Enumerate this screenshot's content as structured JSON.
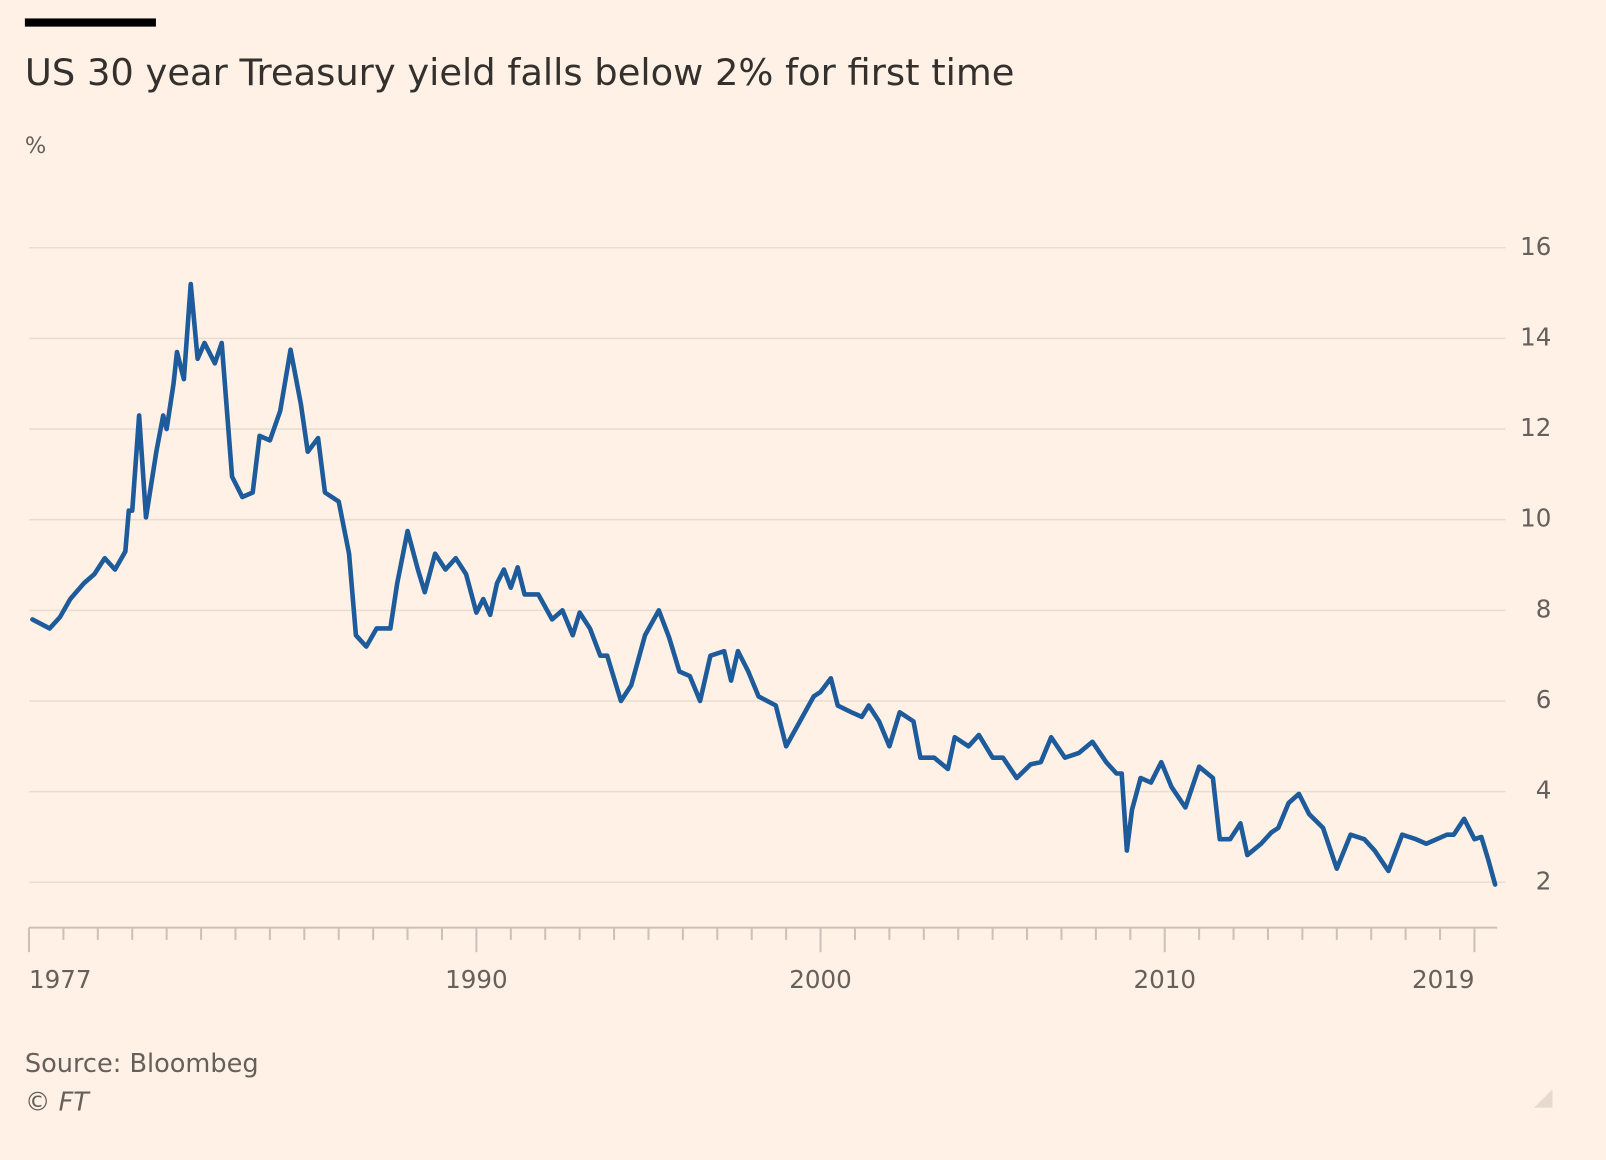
{
  "chart_data": {
    "type": "line",
    "title": "US 30 year Treasury yield falls below 2% for first time",
    "y_label": "%",
    "source": "Source: Bloombeg",
    "copyright": "© FT",
    "color": "#1d5b9b",
    "grid": true,
    "y_axis_side": "right",
    "xlim": [
      1977,
      2019.6
    ],
    "xticks": [
      1977,
      1990,
      2000,
      2010,
      2019
    ],
    "xminorticks": [
      1978,
      1979,
      1980,
      1981,
      1982,
      1983,
      1984,
      1985,
      1986,
      1987,
      1988,
      1989,
      1991,
      1992,
      1993,
      1994,
      1995,
      1996,
      1997,
      1998,
      1999,
      2001,
      2002,
      2003,
      2004,
      2005,
      2006,
      2007,
      2008,
      2009,
      2011,
      2012,
      2013,
      2014,
      2015,
      2016,
      2017,
      2018
    ],
    "ylim": [
      1,
      16
    ],
    "yticks": [
      2,
      4,
      6,
      8,
      10,
      12,
      14,
      16
    ],
    "x": [
      1977.1,
      1977.6,
      1977.9,
      1978.2,
      1978.6,
      1978.9,
      1979.2,
      1979.5,
      1979.8,
      1979.9,
      1980.0,
      1980.2,
      1980.4,
      1980.7,
      1980.9,
      1981.0,
      1981.2,
      1981.3,
      1981.5,
      1981.7,
      1981.9,
      1982.1,
      1982.4,
      1982.6,
      1982.9,
      1983.2,
      1983.5,
      1983.7,
      1984.0,
      1984.3,
      1984.6,
      1984.9,
      1985.1,
      1985.4,
      1985.6,
      1986.0,
      1986.3,
      1986.5,
      1986.8,
      1987.1,
      1987.5,
      1987.7,
      1988.0,
      1988.3,
      1988.5,
      1988.8,
      1989.1,
      1989.4,
      1989.7,
      1990.0,
      1990.2,
      1990.4,
      1990.6,
      1990.8,
      1991.0,
      1991.2,
      1991.4,
      1991.8,
      1992.2,
      1992.5,
      1992.8,
      1993.0,
      1993.3,
      1993.6,
      1993.8,
      1994.2,
      1994.5,
      1994.9,
      1995.3,
      1995.6,
      1995.9,
      1996.2,
      1996.5,
      1996.8,
      1997.2,
      1997.4,
      1997.6,
      1997.9,
      1998.2,
      1998.7,
      1999.0,
      1999.4,
      1999.8,
      2000.0,
      2000.3,
      2000.5,
      2000.9,
      2001.2,
      2001.4,
      2001.7,
      2002.0,
      2002.3,
      2002.7,
      2002.9,
      2003.3,
      2003.7,
      2003.9,
      2004.3,
      2004.6,
      2005.0,
      2005.3,
      2005.7,
      2006.1,
      2006.4,
      2006.7,
      2007.1,
      2007.5,
      2007.9,
      2008.3,
      2008.6,
      2008.75,
      2008.9,
      2009.05,
      2009.3,
      2009.6,
      2009.9,
      2010.2,
      2010.6,
      2011.0,
      2011.4,
      2011.6,
      2011.9,
      2012.2,
      2012.4,
      2012.8,
      2013.1,
      2013.3,
      2013.6,
      2013.9,
      2014.2,
      2014.6,
      2015.0,
      2015.4,
      2015.8,
      2016.1,
      2016.5,
      2016.9,
      2017.3,
      2017.6,
      2017.9,
      2018.2,
      2018.4,
      2018.7,
      2019.0,
      2019.2,
      2019.4,
      2019.6
    ],
    "values": [
      7.8,
      7.6,
      7.85,
      8.25,
      8.6,
      8.8,
      9.15,
      8.9,
      9.3,
      10.2,
      10.2,
      12.3,
      10.05,
      11.5,
      12.3,
      12.0,
      13.0,
      13.7,
      13.1,
      15.2,
      13.55,
      13.9,
      13.45,
      13.9,
      10.95,
      10.5,
      10.6,
      11.85,
      11.75,
      12.4,
      13.75,
      12.55,
      11.5,
      11.8,
      10.6,
      10.4,
      9.25,
      7.45,
      7.2,
      7.6,
      7.6,
      8.6,
      9.75,
      8.9,
      8.4,
      9.25,
      8.9,
      9.15,
      8.8,
      7.95,
      8.25,
      7.9,
      8.6,
      8.9,
      8.5,
      8.95,
      8.35,
      8.35,
      7.8,
      8.0,
      7.45,
      7.95,
      7.6,
      7.0,
      7.0,
      6.0,
      6.35,
      7.45,
      8.0,
      7.4,
      6.65,
      6.55,
      6.0,
      7.0,
      7.1,
      6.45,
      7.1,
      6.65,
      6.1,
      5.9,
      5.0,
      5.55,
      6.1,
      6.2,
      6.5,
      5.9,
      5.75,
      5.65,
      5.9,
      5.55,
      5.0,
      5.75,
      5.55,
      4.75,
      4.75,
      4.5,
      5.2,
      5.0,
      5.25,
      4.75,
      4.75,
      4.3,
      4.6,
      4.65,
      5.2,
      4.75,
      4.85,
      5.1,
      4.65,
      4.4,
      4.4,
      2.7,
      3.6,
      4.3,
      4.2,
      4.65,
      4.1,
      3.65,
      4.55,
      4.3,
      2.95,
      2.95,
      3.3,
      2.6,
      2.85,
      3.1,
      3.2,
      3.75,
      3.95,
      3.5,
      3.2,
      2.3,
      3.05,
      2.95,
      2.7,
      2.25,
      3.05,
      2.95,
      2.85,
      2.95,
      3.05,
      3.05,
      3.4,
      2.95,
      3.0,
      2.5,
      1.95
    ]
  }
}
